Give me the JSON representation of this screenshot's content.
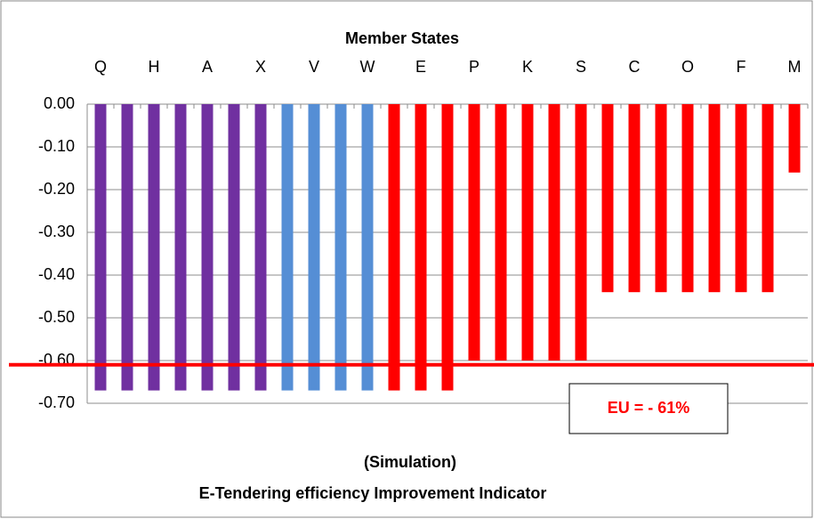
{
  "chart_data": {
    "type": "bar",
    "title": "Member States",
    "subtitle": "(Simulation)",
    "caption": "E-Tendering efficiency Improvement Indicator",
    "categories": [
      "Q",
      null,
      "H",
      null,
      "A",
      null,
      "X",
      null,
      "V",
      null,
      "W",
      null,
      "E",
      null,
      "P",
      null,
      "K",
      null,
      "S",
      null,
      "C",
      null,
      "O",
      null,
      "F",
      null,
      "M"
    ],
    "values": [
      -0.67,
      -0.67,
      -0.67,
      -0.67,
      -0.67,
      -0.67,
      -0.67,
      -0.67,
      -0.67,
      -0.67,
      -0.67,
      -0.67,
      -0.67,
      -0.67,
      -0.6,
      -0.6,
      -0.6,
      -0.6,
      -0.6,
      -0.44,
      -0.44,
      -0.44,
      -0.44,
      -0.44,
      -0.44,
      -0.44,
      -0.16
    ],
    "colors": [
      "#7030a0",
      "#7030a0",
      "#7030a0",
      "#7030a0",
      "#7030a0",
      "#7030a0",
      "#7030a0",
      "#558ed5",
      "#558ed5",
      "#558ed5",
      "#558ed5",
      "#ff0000",
      "#ff0000",
      "#ff0000",
      "#ff0000",
      "#ff0000",
      "#ff0000",
      "#ff0000",
      "#ff0000",
      "#ff0000",
      "#ff0000",
      "#ff0000",
      "#ff0000",
      "#ff0000",
      "#ff0000",
      "#ff0000",
      "#ff0000"
    ],
    "ylim": [
      -0.7,
      0
    ],
    "yticks": [
      {
        "value": 0,
        "label": "0.00"
      },
      {
        "value": -0.1,
        "label": "-0.10"
      },
      {
        "value": -0.2,
        "label": "-0.20"
      },
      {
        "value": -0.3,
        "label": "-0.30"
      },
      {
        "value": -0.4,
        "label": "-0.40"
      },
      {
        "value": -0.5,
        "label": "-0.50"
      },
      {
        "value": -0.6,
        "label": "-0.60"
      },
      {
        "value": -0.7,
        "label": "-0.70"
      }
    ],
    "grid": true,
    "reference_line": {
      "value": -0.61,
      "label": "EU = - 61%",
      "color": "#ff0000"
    }
  }
}
